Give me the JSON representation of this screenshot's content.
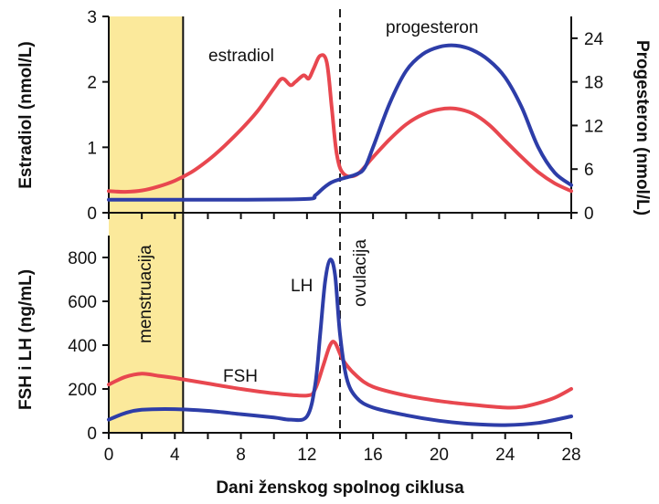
{
  "chart_data": [
    {
      "type": "line",
      "panel": "top",
      "xlabel": "",
      "ylabel": "Estradiol (nmol/L)",
      "y2label": "Progesteron (nmol/L)",
      "xlim": [
        0,
        28
      ],
      "ylim": [
        0,
        3
      ],
      "y2lim": [
        0,
        27
      ],
      "yticks": [
        0,
        1,
        2,
        3
      ],
      "y2ticks": [
        0,
        6,
        12,
        18,
        24
      ],
      "series": [
        {
          "name": "estradiol",
          "axis": "left",
          "color": "#e8474f",
          "points": [
            [
              0,
              0.33
            ],
            [
              1,
              0.32
            ],
            [
              2,
              0.34
            ],
            [
              3,
              0.4
            ],
            [
              4,
              0.49
            ],
            [
              5,
              0.62
            ],
            [
              6,
              0.8
            ],
            [
              7,
              1.02
            ],
            [
              8,
              1.27
            ],
            [
              9,
              1.55
            ],
            [
              10,
              1.9
            ],
            [
              10.5,
              2.05
            ],
            [
              11,
              1.95
            ],
            [
              11.3,
              2.0
            ],
            [
              11.8,
              2.1
            ],
            [
              12.1,
              2.05
            ],
            [
              12.4,
              2.2
            ],
            [
              12.8,
              2.4
            ],
            [
              13.2,
              2.3
            ],
            [
              13.5,
              1.6
            ],
            [
              13.8,
              0.9
            ],
            [
              14.2,
              0.6
            ],
            [
              15,
              0.58
            ],
            [
              16,
              0.85
            ],
            [
              17,
              1.12
            ],
            [
              18,
              1.35
            ],
            [
              19,
              1.5
            ],
            [
              20,
              1.58
            ],
            [
              21,
              1.59
            ],
            [
              22,
              1.52
            ],
            [
              23,
              1.35
            ],
            [
              24,
              1.1
            ],
            [
              25,
              0.85
            ],
            [
              26,
              0.62
            ],
            [
              27,
              0.45
            ],
            [
              28,
              0.33
            ]
          ]
        },
        {
          "name": "progesteron",
          "axis": "right",
          "color": "#2d3da8",
          "points": [
            [
              0,
              1.8
            ],
            [
              4,
              1.8
            ],
            [
              8,
              1.8
            ],
            [
              12,
              1.9
            ],
            [
              12.5,
              2.4
            ],
            [
              13,
              3.4
            ],
            [
              13.5,
              4.2
            ],
            [
              14,
              4.6
            ],
            [
              15,
              5.3
            ],
            [
              15.5,
              6.2
            ],
            [
              16,
              9.0
            ],
            [
              17,
              15.0
            ],
            [
              18,
              19.5
            ],
            [
              19,
              21.8
            ],
            [
              20,
              22.8
            ],
            [
              21,
              23.0
            ],
            [
              22,
              22.4
            ],
            [
              23,
              21.0
            ],
            [
              24,
              18.6
            ],
            [
              25,
              14.5
            ],
            [
              26,
              9.0
            ],
            [
              27,
              5.5
            ],
            [
              28,
              3.8
            ]
          ]
        }
      ],
      "labels": {
        "estradiol": "estradiol",
        "progesteron": "progesteron"
      }
    },
    {
      "type": "line",
      "panel": "bottom",
      "xlabel": "Dani ženskog spolnog ciklusa",
      "ylabel": "FSH i LH (ng/mL)",
      "xlim": [
        0,
        28
      ],
      "ylim": [
        0,
        900
      ],
      "yticks": [
        0,
        200,
        400,
        600,
        800
      ],
      "xticks": [
        0,
        4,
        8,
        12,
        16,
        20,
        24,
        28
      ],
      "series": [
        {
          "name": "FSH",
          "color": "#e8474f",
          "points": [
            [
              0,
              220
            ],
            [
              1,
              255
            ],
            [
              2,
              270
            ],
            [
              3,
              260
            ],
            [
              4,
              250
            ],
            [
              6,
              225
            ],
            [
              8,
              200
            ],
            [
              10,
              180
            ],
            [
              12,
              170
            ],
            [
              12.5,
              200
            ],
            [
              13,
              310
            ],
            [
              13.4,
              400
            ],
            [
              13.7,
              410
            ],
            [
              14.2,
              330
            ],
            [
              15,
              260
            ],
            [
              16,
              210
            ],
            [
              18,
              170
            ],
            [
              20,
              145
            ],
            [
              22,
              128
            ],
            [
              24,
              115
            ],
            [
              25,
              118
            ],
            [
              26,
              135
            ],
            [
              27,
              160
            ],
            [
              28,
              200
            ]
          ]
        },
        {
          "name": "LH",
          "color": "#2d3da8",
          "points": [
            [
              0,
              60
            ],
            [
              1,
              90
            ],
            [
              2,
              105
            ],
            [
              4,
              108
            ],
            [
              6,
              100
            ],
            [
              8,
              85
            ],
            [
              10,
              70
            ],
            [
              11,
              60
            ],
            [
              12,
              75
            ],
            [
              12.5,
              220
            ],
            [
              12.8,
              450
            ],
            [
              13.1,
              690
            ],
            [
              13.4,
              790
            ],
            [
              13.7,
              720
            ],
            [
              14,
              450
            ],
            [
              14.4,
              250
            ],
            [
              15,
              160
            ],
            [
              16,
              115
            ],
            [
              18,
              80
            ],
            [
              20,
              55
            ],
            [
              22,
              40
            ],
            [
              24,
              35
            ],
            [
              26,
              45
            ],
            [
              28,
              75
            ]
          ]
        }
      ],
      "labels": {
        "fsh": "FSH",
        "lh": "LH"
      }
    }
  ],
  "annotations": {
    "menstruation_label": "menstruacija",
    "menstruation_range": [
      0,
      4.5
    ],
    "ovulation_label": "ovulacija",
    "ovulation_day": 14
  },
  "colors": {
    "menstruation_band": "#fbe99b",
    "ovulation_line": "#222222"
  }
}
